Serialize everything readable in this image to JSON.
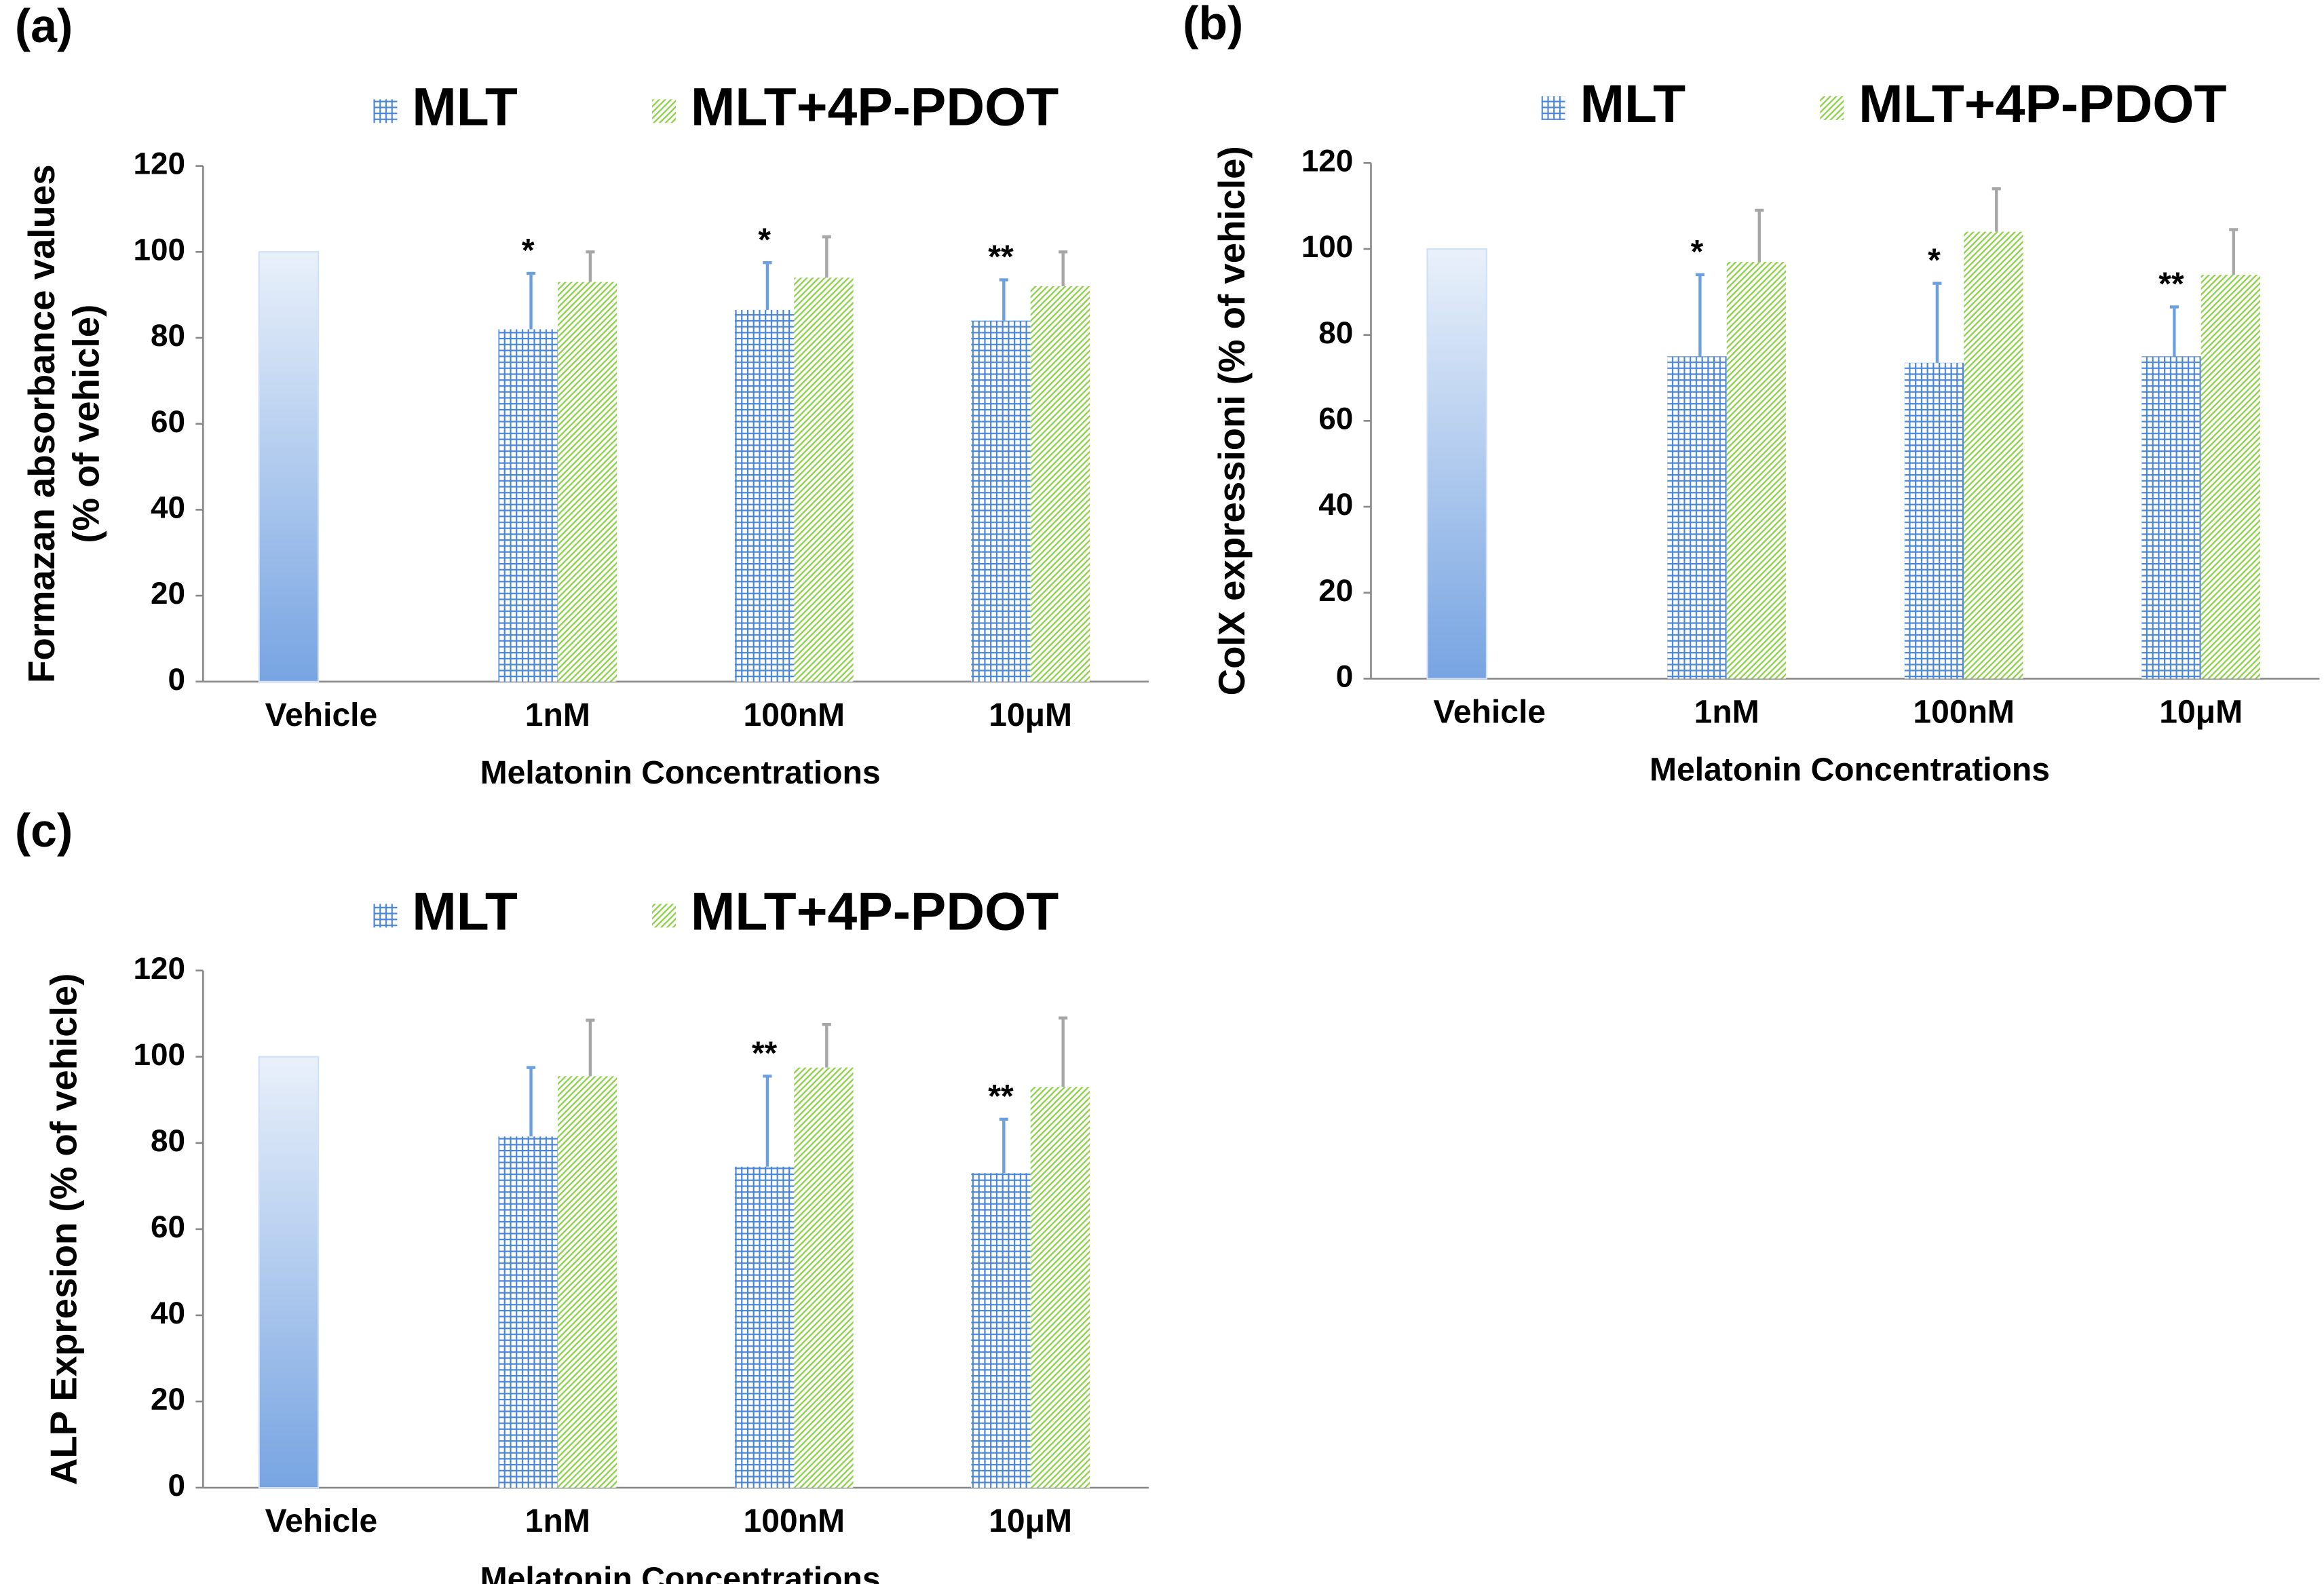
{
  "chart_data": [
    {
      "type": "bar",
      "panel_label": "(a)",
      "ylabel": [
        "Formazan absorbance values",
        "(% of vehicle)"
      ],
      "xlabel": "Melatonin Concentrations",
      "categories": [
        "Vehicle",
        "1nM",
        "100nM",
        "10μM"
      ],
      "series": [
        {
          "name": "MLT",
          "color": "#4a86d8",
          "error_color": "#6a9fe0",
          "values": [
            100,
            82,
            86.5,
            84
          ],
          "errors": [
            null,
            13,
            11,
            9.5
          ],
          "annotations": [
            null,
            "*",
            "*",
            "**"
          ]
        },
        {
          "name": "MLT+4P-PDOT",
          "color": "#92d050",
          "error_color": "#a6a6a6",
          "values": [
            null,
            93,
            94,
            92
          ],
          "errors": [
            null,
            7,
            9.5,
            8
          ]
        }
      ],
      "ylim": [
        0,
        120
      ],
      "yticks": [
        0,
        20,
        40,
        60,
        80,
        100,
        120
      ],
      "grid": false
    },
    {
      "type": "bar",
      "panel_label": "(b)",
      "ylabel": [
        "ColX expressioni (% of vehicle)"
      ],
      "xlabel": "Melatonin Concentrations",
      "categories": [
        "Vehicle",
        "1nM",
        "100nM",
        "10μM"
      ],
      "series": [
        {
          "name": "MLT",
          "color": "#4a86d8",
          "error_color": "#6a9fe0",
          "values": [
            100,
            75,
            73.5,
            75
          ],
          "errors": [
            null,
            19,
            18.5,
            11.5
          ],
          "annotations": [
            null,
            "*",
            "*",
            "**"
          ]
        },
        {
          "name": "MLT+4P-PDOT",
          "color": "#92d050",
          "error_color": "#a6a6a6",
          "values": [
            null,
            97,
            104,
            94
          ],
          "errors": [
            null,
            12,
            10,
            10.5
          ]
        }
      ],
      "ylim": [
        0,
        120
      ],
      "yticks": [
        0,
        20,
        40,
        60,
        80,
        100,
        120
      ],
      "grid": false
    },
    {
      "type": "bar",
      "panel_label": "(c)",
      "ylabel": [
        "ALP Expresion (% of vehicle)"
      ],
      "xlabel": "Melatonin Concentrations",
      "categories": [
        "Vehicle",
        "1nM",
        "100nM",
        "10μM"
      ],
      "series": [
        {
          "name": "MLT",
          "color": "#4a86d8",
          "error_color": "#6a9fe0",
          "values": [
            100,
            81.5,
            74.5,
            73
          ],
          "errors": [
            null,
            16,
            21,
            12.5
          ],
          "annotations": [
            null,
            null,
            "**",
            "**"
          ]
        },
        {
          "name": "MLT+4P-PDOT",
          "color": "#92d050",
          "error_color": "#a6a6a6",
          "values": [
            null,
            95.5,
            97.5,
            93
          ],
          "errors": [
            null,
            13,
            10,
            16
          ]
        }
      ],
      "ylim": [
        0,
        120
      ],
      "yticks": [
        0,
        20,
        40,
        60,
        80,
        100,
        120
      ],
      "grid": false
    }
  ]
}
